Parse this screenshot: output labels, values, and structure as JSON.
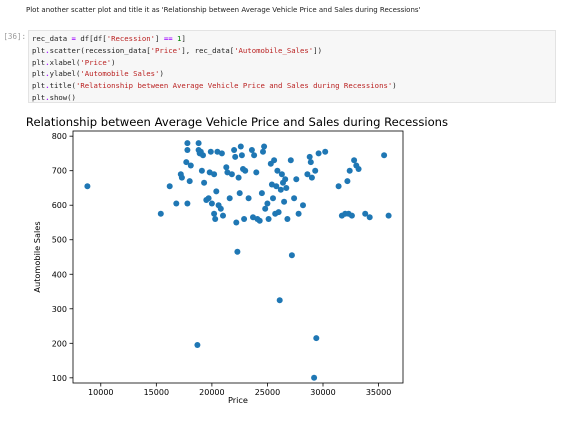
{
  "markdown": {
    "instruction": "Plot another scatter plot and title it as 'Relationship between Average Vehicle Price and Sales during Recessions'"
  },
  "code_cell": {
    "prompt": "[36]:",
    "lines": [
      [
        {
          "t": "rec_data "
        },
        {
          "t": "=",
          "c": "op"
        },
        {
          "t": " df[df["
        },
        {
          "t": "'Recession'",
          "c": "str"
        },
        {
          "t": "] "
        },
        {
          "t": "==",
          "c": "op"
        },
        {
          "t": " "
        },
        {
          "t": "1",
          "c": "num"
        },
        {
          "t": "]"
        }
      ],
      [
        {
          "t": "plt"
        },
        {
          "t": ".",
          "c": "op"
        },
        {
          "t": "scatter(recession_data["
        },
        {
          "t": "'Price'",
          "c": "str"
        },
        {
          "t": "], rec_data["
        },
        {
          "t": "'Automobile_Sales'",
          "c": "str"
        },
        {
          "t": "])"
        }
      ],
      [
        {
          "t": "plt"
        },
        {
          "t": ".",
          "c": "op"
        },
        {
          "t": "xlabel("
        },
        {
          "t": "'Price'",
          "c": "str"
        },
        {
          "t": ")"
        }
      ],
      [
        {
          "t": "plt"
        },
        {
          "t": ".",
          "c": "op"
        },
        {
          "t": "ylabel("
        },
        {
          "t": "'Automobile Sales'",
          "c": "str"
        },
        {
          "t": ")"
        }
      ],
      [
        {
          "t": "plt"
        },
        {
          "t": ".",
          "c": "op"
        },
        {
          "t": "title("
        },
        {
          "t": "'Relationship between Average Vehicle Price and Sales during Recessions'",
          "c": "str"
        },
        {
          "t": ")"
        }
      ],
      [
        {
          "t": "plt"
        },
        {
          "t": ".",
          "c": "op"
        },
        {
          "t": "show()"
        }
      ]
    ]
  },
  "colors": {
    "marker": "#1f77b4",
    "code_background": "#f7f7f7",
    "string": "#ba2121",
    "operator": "#aa22ff"
  },
  "chart_data": {
    "type": "scatter",
    "title": "Relationship between Average Vehicle Price and Sales during Recessions",
    "xlabel": "Price",
    "ylabel": "Automobile Sales",
    "xlim": [
      7500,
      37200
    ],
    "ylim": [
      85,
      815
    ],
    "xticks": [
      10000,
      15000,
      20000,
      25000,
      30000,
      35000
    ],
    "yticks": [
      100,
      200,
      300,
      400,
      500,
      600,
      700,
      800
    ],
    "grid": false,
    "points": [
      [
        8800,
        655
      ],
      [
        15400,
        575
      ],
      [
        16200,
        655
      ],
      [
        16800,
        605
      ],
      [
        17200,
        690
      ],
      [
        17300,
        680
      ],
      [
        17700,
        725
      ],
      [
        17800,
        780
      ],
      [
        17800,
        760
      ],
      [
        17800,
        605
      ],
      [
        18000,
        670
      ],
      [
        18100,
        715
      ],
      [
        18700,
        195
      ],
      [
        18800,
        780
      ],
      [
        18800,
        760
      ],
      [
        18900,
        750
      ],
      [
        19000,
        755
      ],
      [
        19100,
        700
      ],
      [
        19200,
        745
      ],
      [
        19300,
        665
      ],
      [
        19500,
        615
      ],
      [
        19700,
        620
      ],
      [
        19800,
        695
      ],
      [
        19900,
        755
      ],
      [
        20000,
        605
      ],
      [
        20200,
        690
      ],
      [
        20200,
        575
      ],
      [
        20300,
        560
      ],
      [
        20400,
        640
      ],
      [
        20500,
        755
      ],
      [
        20600,
        600
      ],
      [
        20800,
        590
      ],
      [
        20900,
        750
      ],
      [
        21000,
        570
      ],
      [
        21300,
        710
      ],
      [
        21400,
        695
      ],
      [
        21600,
        620
      ],
      [
        21800,
        690
      ],
      [
        22000,
        760
      ],
      [
        22100,
        740
      ],
      [
        22200,
        550
      ],
      [
        22300,
        465
      ],
      [
        22400,
        680
      ],
      [
        22500,
        635
      ],
      [
        22600,
        770
      ],
      [
        22700,
        745
      ],
      [
        22800,
        705
      ],
      [
        22900,
        560
      ],
      [
        23000,
        700
      ],
      [
        23300,
        620
      ],
      [
        23600,
        760
      ],
      [
        23700,
        565
      ],
      [
        23800,
        745
      ],
      [
        24000,
        695
      ],
      [
        24100,
        560
      ],
      [
        24300,
        555
      ],
      [
        24500,
        635
      ],
      [
        24600,
        755
      ],
      [
        24700,
        770
      ],
      [
        24800,
        590
      ],
      [
        25000,
        605
      ],
      [
        25100,
        560
      ],
      [
        25300,
        720
      ],
      [
        25400,
        660
      ],
      [
        25500,
        620
      ],
      [
        25600,
        730
      ],
      [
        25700,
        575
      ],
      [
        25800,
        655
      ],
      [
        25900,
        700
      ],
      [
        26000,
        580
      ],
      [
        26100,
        325
      ],
      [
        26200,
        645
      ],
      [
        26300,
        690
      ],
      [
        26400,
        665
      ],
      [
        26500,
        610
      ],
      [
        26600,
        675
      ],
      [
        26700,
        650
      ],
      [
        26800,
        560
      ],
      [
        27100,
        730
      ],
      [
        27200,
        455
      ],
      [
        27400,
        620
      ],
      [
        27600,
        675
      ],
      [
        27800,
        575
      ],
      [
        28200,
        600
      ],
      [
        28600,
        690
      ],
      [
        28800,
        740
      ],
      [
        28900,
        725
      ],
      [
        29000,
        680
      ],
      [
        29200,
        100
      ],
      [
        29300,
        700
      ],
      [
        29400,
        215
      ],
      [
        29600,
        750
      ],
      [
        30200,
        755
      ],
      [
        31400,
        655
      ],
      [
        31700,
        570
      ],
      [
        32000,
        575
      ],
      [
        32200,
        670
      ],
      [
        32300,
        575
      ],
      [
        32400,
        700
      ],
      [
        32600,
        570
      ],
      [
        32800,
        730
      ],
      [
        33000,
        715
      ],
      [
        33200,
        705
      ],
      [
        33800,
        575
      ],
      [
        34200,
        565
      ],
      [
        35500,
        745
      ],
      [
        35900,
        570
      ]
    ]
  }
}
